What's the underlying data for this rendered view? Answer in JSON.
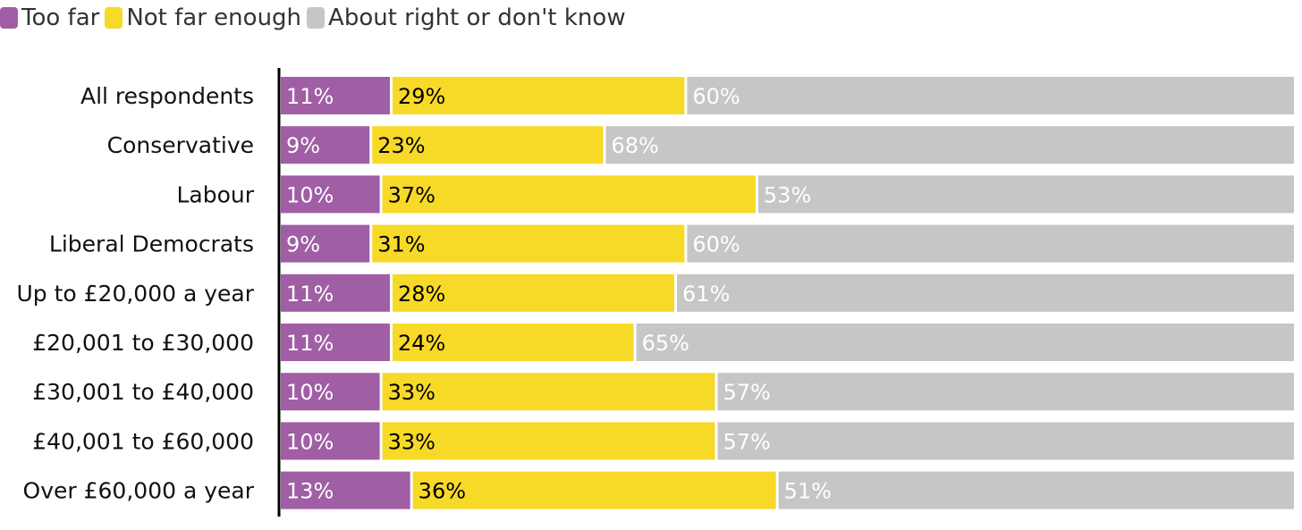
{
  "chart_data": {
    "type": "bar",
    "orientation": "horizontal",
    "stacked": true,
    "categories": [
      "All respondents",
      "Conservative",
      "Labour",
      "Liberal Democrats",
      "Up to £20,000 a year",
      "£20,001 to £30,000",
      "£30,001 to £40,000",
      "£40,001 to £60,000",
      "Over £60,000 a year"
    ],
    "series": [
      {
        "name": "Too far",
        "color": "#a05ea5",
        "label_color": "#ffffff",
        "values": [
          11,
          9,
          10,
          9,
          11,
          11,
          10,
          10,
          13
        ],
        "labels": [
          "11%",
          "9%",
          "10%",
          "9%",
          "11%",
          "11%",
          "10%",
          "10%",
          "13%"
        ]
      },
      {
        "name": "Not far enough",
        "color": "#f7d928",
        "label_color": "#000000",
        "values": [
          29,
          23,
          37,
          31,
          28,
          24,
          33,
          33,
          36
        ],
        "labels": [
          "29%",
          "23%",
          "37%",
          "31%",
          "28%",
          "24%",
          "33%",
          "33%",
          "36%"
        ]
      },
      {
        "name": "About right or don't know",
        "color": "#c6c6c6",
        "label_color": "#ffffff",
        "values": [
          60,
          68,
          53,
          60,
          61,
          65,
          57,
          57,
          51
        ],
        "labels": [
          "60%",
          "68%",
          "53%",
          "60%",
          "61%",
          "65%",
          "57%",
          "57%",
          "51%"
        ]
      }
    ],
    "xlim": [
      0,
      100
    ],
    "grid": false,
    "legend_position": "top-left",
    "title": "",
    "xlabel": "",
    "ylabel": ""
  }
}
